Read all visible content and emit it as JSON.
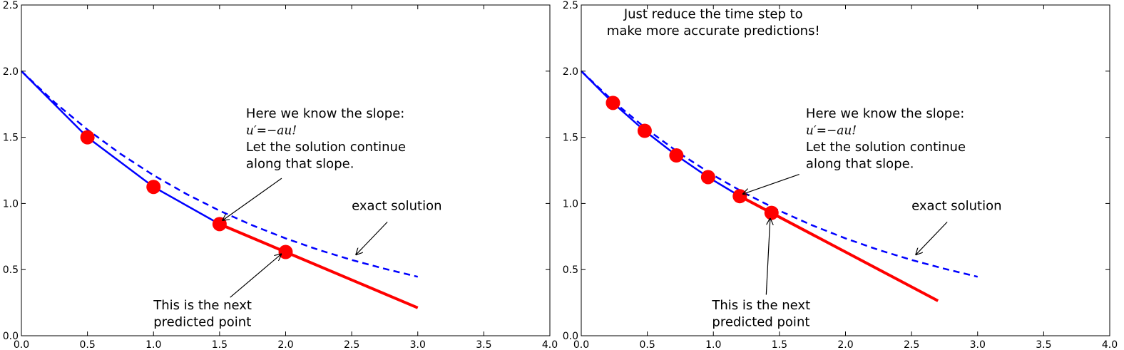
{
  "chart_data": [
    {
      "type": "line",
      "xlim": [
        0.0,
        4.0
      ],
      "ylim": [
        0.0,
        2.5
      ],
      "xticks": [
        "0.0",
        "0.5",
        "1.0",
        "1.5",
        "2.0",
        "2.5",
        "3.0",
        "3.5",
        "4.0"
      ],
      "yticks": [
        "0.0",
        "0.5",
        "1.0",
        "1.5",
        "2.0",
        "2.5"
      ],
      "grid": false,
      "colors": {
        "numerical": "#0000ff",
        "exact": "#0000ff",
        "predicted": "#ff0000",
        "points": "#ff0000"
      },
      "exact_solution": {
        "style": "dashed",
        "x": [
          0,
          0.25,
          0.5,
          0.75,
          1.0,
          1.25,
          1.5,
          1.75,
          2.0,
          2.25,
          2.5,
          2.75,
          3.0
        ],
        "y": [
          2.0,
          1.765,
          1.558,
          1.375,
          1.213,
          1.071,
          0.945,
          0.834,
          0.736,
          0.649,
          0.573,
          0.506,
          0.446
        ]
      },
      "numerical_solution": {
        "style": "solid",
        "x": [
          0.0,
          0.5,
          1.0,
          1.5
        ],
        "y": [
          2.0,
          1.5,
          1.125,
          0.844
        ]
      },
      "points": {
        "x": [
          0.5,
          1.0,
          1.5,
          2.0
        ],
        "y": [
          1.5,
          1.125,
          0.844,
          0.633
        ]
      },
      "slope_line": {
        "x": [
          1.5,
          3.0
        ],
        "y": [
          0.844,
          0.211
        ]
      },
      "annotations": [
        {
          "lines": [
            "Here we know the slope:",
            "u′=−au!",
            "Let the solution continue",
            "along that slope."
          ],
          "math_line": 1,
          "text_x": 1.7,
          "text_y": 1.65,
          "arrow_from": [
            1.97,
            1.19
          ],
          "arrow_to": [
            1.52,
            0.87
          ]
        },
        {
          "lines": [
            "exact solution"
          ],
          "text_x": 2.5,
          "text_y": 0.95,
          "arrow_from": [
            2.77,
            0.86
          ],
          "arrow_to": [
            2.53,
            0.61
          ]
        },
        {
          "lines": [
            "This is the next",
            "predicted point"
          ],
          "text_x": 1.0,
          "text_y": 0.2,
          "arrow_from": [
            1.58,
            0.29
          ],
          "arrow_to": [
            1.97,
            0.62
          ]
        }
      ]
    },
    {
      "type": "line",
      "xlim": [
        0.0,
        4.0
      ],
      "ylim": [
        0.0,
        2.5
      ],
      "xticks": [
        "0.0",
        "0.5",
        "1.0",
        "1.5",
        "2.0",
        "2.5",
        "3.0",
        "3.5",
        "4.0"
      ],
      "yticks": [
        "0.0",
        "0.5",
        "1.0",
        "1.5",
        "2.0",
        "2.5"
      ],
      "grid": false,
      "colors": {
        "numerical": "#0000ff",
        "exact": "#0000ff",
        "predicted": "#ff0000",
        "points": "#ff0000"
      },
      "exact_solution": {
        "style": "dashed",
        "x": [
          0,
          0.25,
          0.5,
          0.75,
          1.0,
          1.25,
          1.5,
          1.75,
          2.0,
          2.25,
          2.5,
          2.75,
          3.0
        ],
        "y": [
          2.0,
          1.765,
          1.558,
          1.375,
          1.213,
          1.071,
          0.945,
          0.834,
          0.736,
          0.649,
          0.573,
          0.506,
          0.446
        ]
      },
      "numerical_solution": {
        "style": "solid",
        "x": [
          0.0,
          0.24,
          0.48,
          0.72,
          0.96,
          1.2
        ],
        "y": [
          2.0,
          1.76,
          1.549,
          1.363,
          1.199,
          1.055
        ]
      },
      "points": {
        "x": [
          0.24,
          0.48,
          0.72,
          0.96,
          1.2,
          1.44
        ],
        "y": [
          1.76,
          1.549,
          1.363,
          1.199,
          1.055,
          0.929
        ]
      },
      "slope_line": {
        "x": [
          1.2,
          2.7
        ],
        "y": [
          1.055,
          0.264
        ]
      },
      "annotations": [
        {
          "lines": [
            "Just reduce the time step to",
            "make more accurate predictions!"
          ],
          "align": "middle",
          "text_x": 1.0,
          "text_y": 2.4
        },
        {
          "lines": [
            "Here we know the slope:",
            "u′=−au!",
            "Let the solution continue",
            "along that slope."
          ],
          "math_line": 1,
          "text_x": 1.7,
          "text_y": 1.65,
          "arrow_from": [
            1.65,
            1.22
          ],
          "arrow_to": [
            1.22,
            1.07
          ]
        },
        {
          "lines": [
            "exact solution"
          ],
          "text_x": 2.5,
          "text_y": 0.95,
          "arrow_from": [
            2.77,
            0.86
          ],
          "arrow_to": [
            2.53,
            0.61
          ]
        },
        {
          "lines": [
            "This is the next",
            "predicted point"
          ],
          "text_x": 0.99,
          "text_y": 0.2,
          "arrow_from": [
            1.4,
            0.31
          ],
          "arrow_to": [
            1.43,
            0.89
          ]
        }
      ]
    }
  ]
}
